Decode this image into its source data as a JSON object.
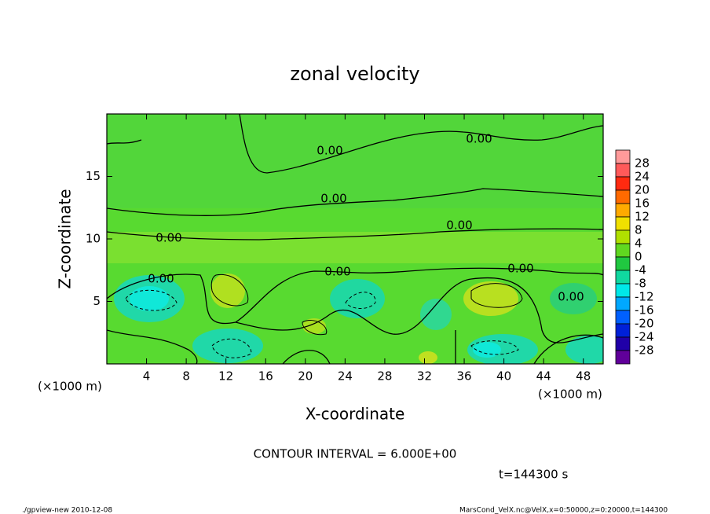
{
  "chart_data": {
    "type": "contour",
    "title": "zonal velocity",
    "xlabel": "X-coordinate",
    "ylabel": "Z-coordinate",
    "xunit": "(×1000 m)",
    "xunit_right": "(×1000 m)",
    "xlim": [
      0,
      50
    ],
    "ylim": [
      0,
      20
    ],
    "xticks": [
      4,
      8,
      12,
      16,
      20,
      24,
      28,
      32,
      36,
      40,
      44,
      48
    ],
    "yticks": [
      5,
      10,
      15
    ],
    "contour_labels": [
      "0.00",
      "0.00",
      "0.00",
      "0.00",
      "0.00",
      "0.00",
      "0.00",
      "0.00",
      "0.00"
    ],
    "colorbar": {
      "levels": [
        28,
        24,
        20,
        16,
        12,
        8,
        4,
        0,
        -4,
        -8,
        -12,
        -16,
        -20,
        -24,
        -28
      ],
      "colors": [
        "#ff9a9a",
        "#ff5a5a",
        "#ff2a10",
        "#ff6a00",
        "#ffaa00",
        "#f0e000",
        "#b0e000",
        "#60d820",
        "#20c840",
        "#10d8a0",
        "#00e8e8",
        "#00a8ff",
        "#0060ff",
        "#0020d8",
        "#2000a8",
        "#60009a"
      ]
    },
    "contour_interval": "CONTOUR INTERVAL = 6.000E+00",
    "time": "t=144300 s",
    "footer_left": "./gpview-new  2010-12-08",
    "footer_right": "MarsCond_VelX.nc@VelX,x=0:50000,z=0:20000,t=144300"
  }
}
